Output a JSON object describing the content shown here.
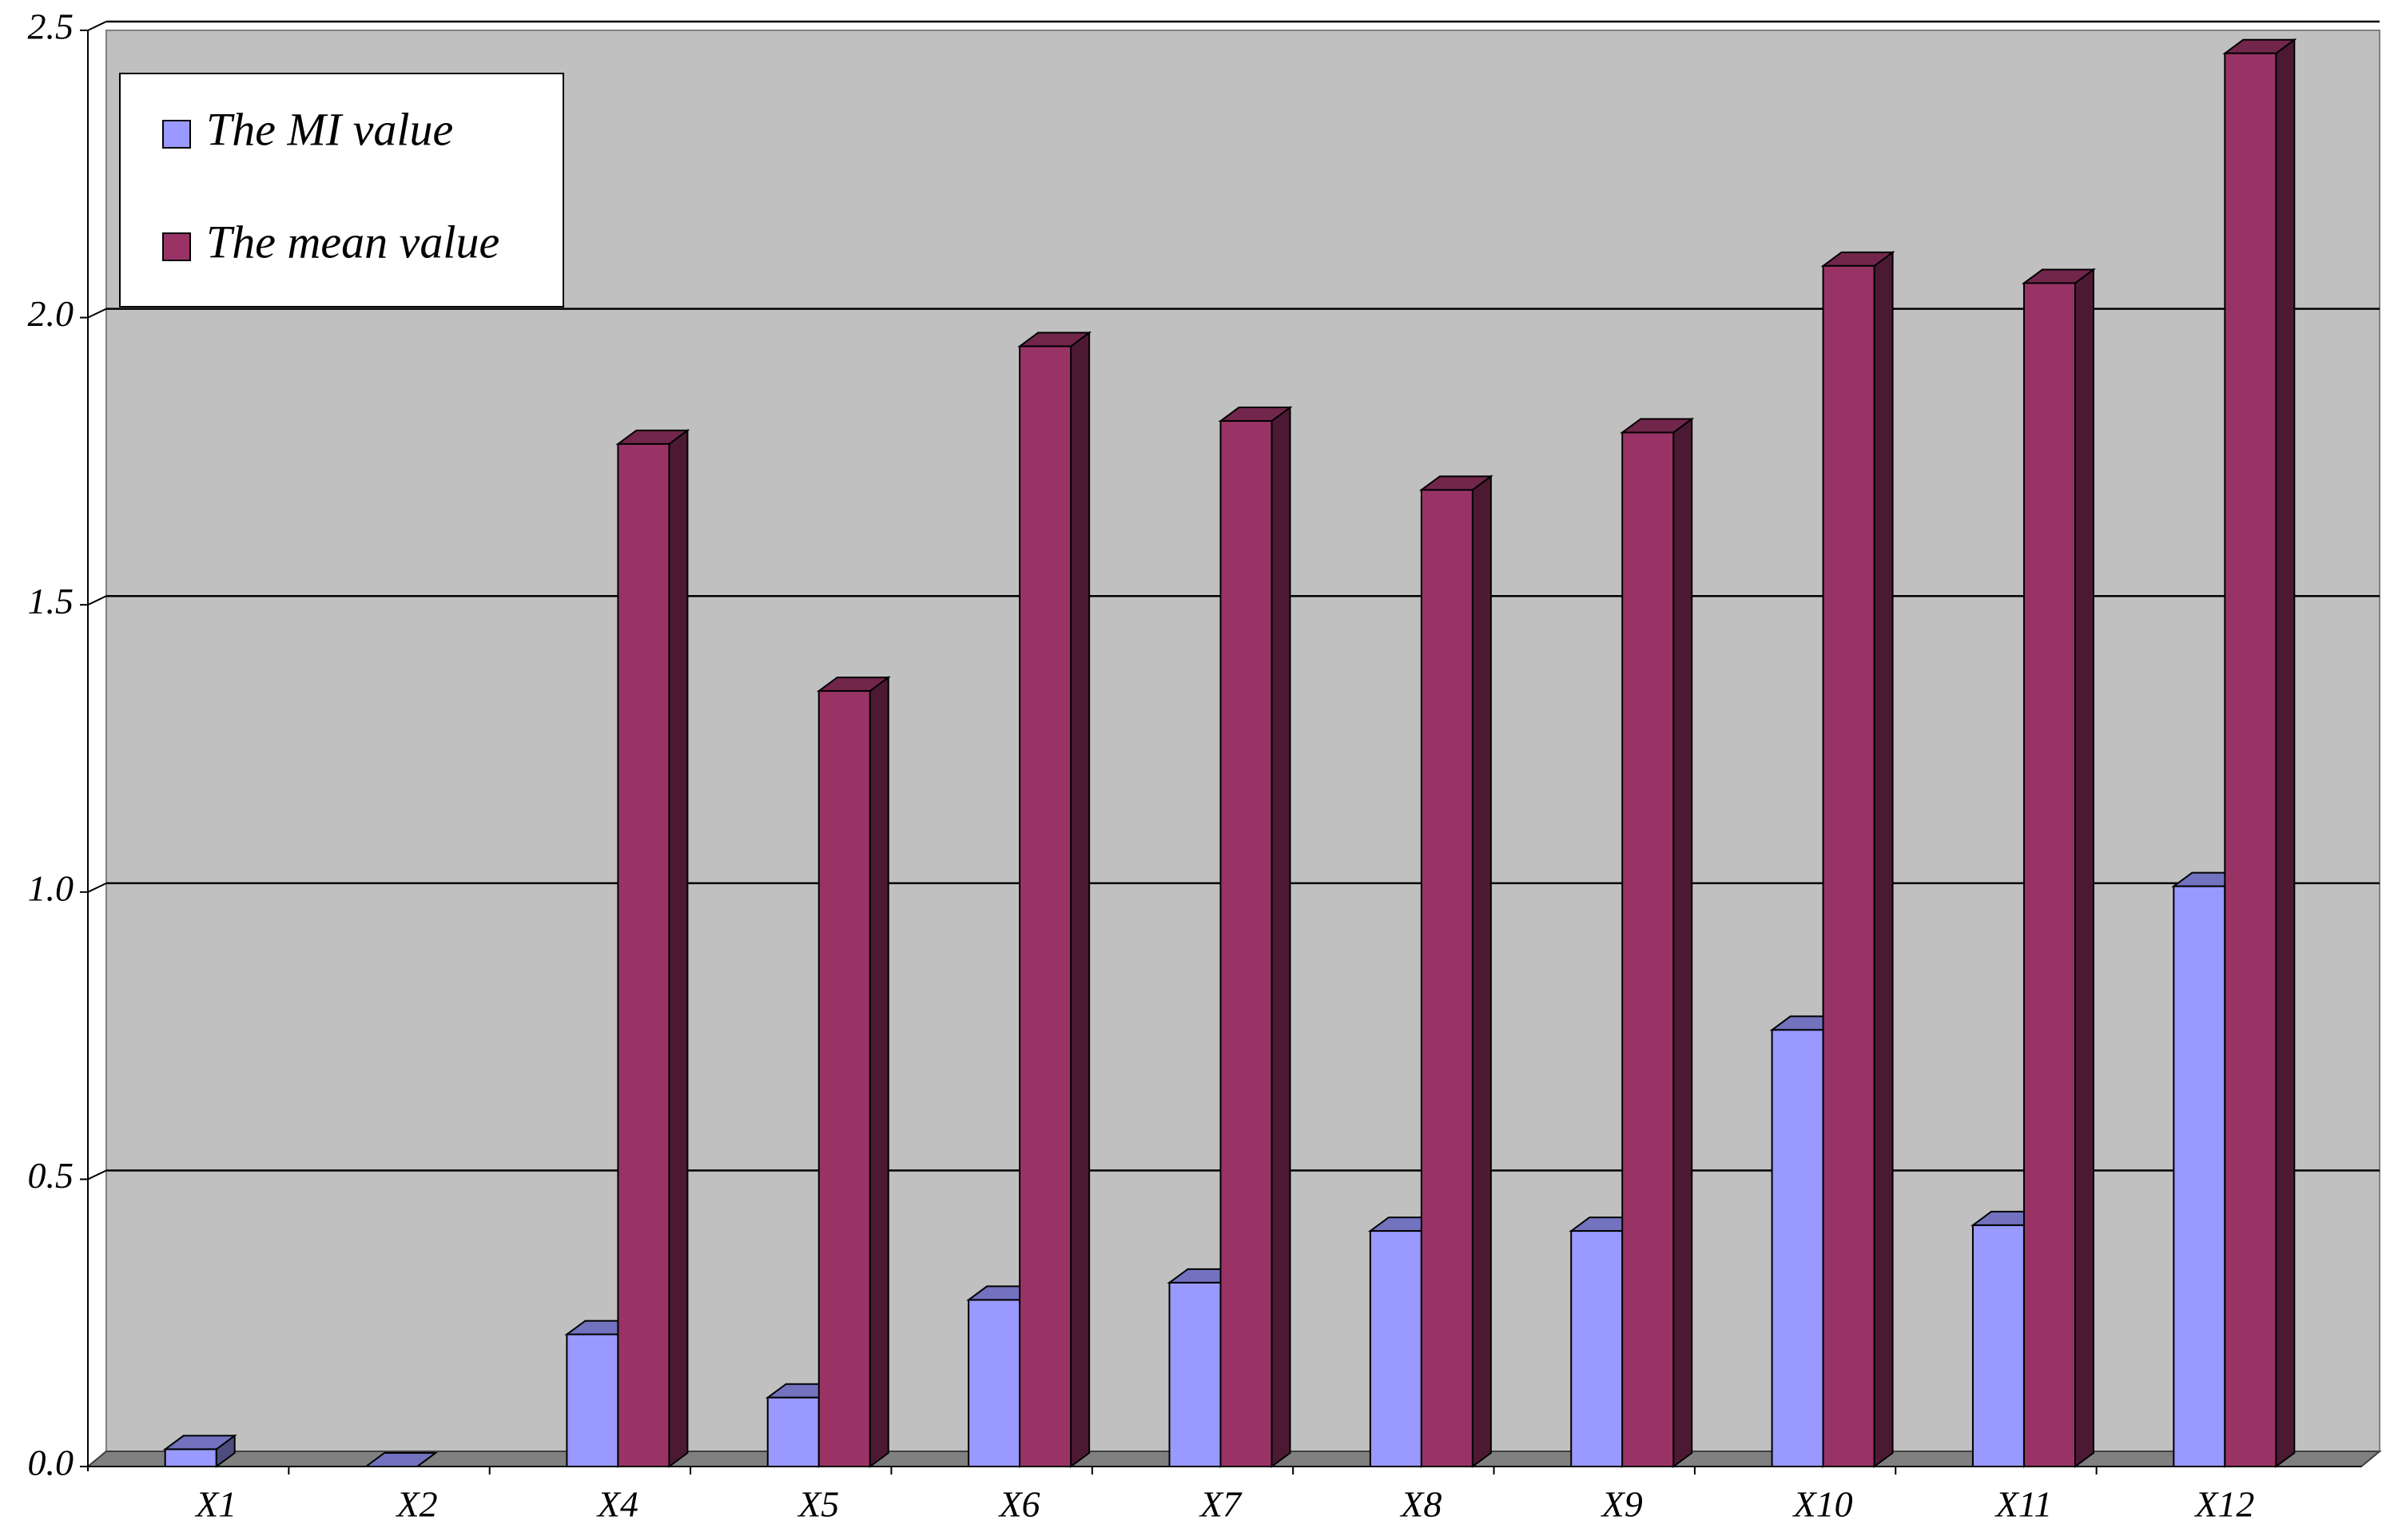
{
  "chart_data": {
    "type": "bar",
    "categories": [
      "X1",
      "X2",
      "X4",
      "X5",
      "X6",
      "X7",
      "X8",
      "X9",
      "X10",
      "X11",
      "X12"
    ],
    "series": [
      {
        "name": "The MI value",
        "color": "#9999ff",
        "values": [
          0.03,
          0,
          0.23,
          0.12,
          0.29,
          0.32,
          0.41,
          0.41,
          0.76,
          0.42,
          1.01
        ]
      },
      {
        "name": "The mean value",
        "color": "#993366",
        "values": [
          null,
          null,
          1.78,
          1.35,
          1.95,
          1.82,
          1.7,
          1.8,
          2.09,
          2.06,
          2.46
        ]
      }
    ],
    "ylim": [
      0,
      2.5
    ],
    "yticks": [
      {
        "value": 0,
        "label": "0.0"
      },
      0.5,
      {
        "value": 1,
        "label": "1.0"
      },
      1.5,
      {
        "value": 2,
        "label": "2.0"
      },
      2.5
    ],
    "grid": true
  }
}
